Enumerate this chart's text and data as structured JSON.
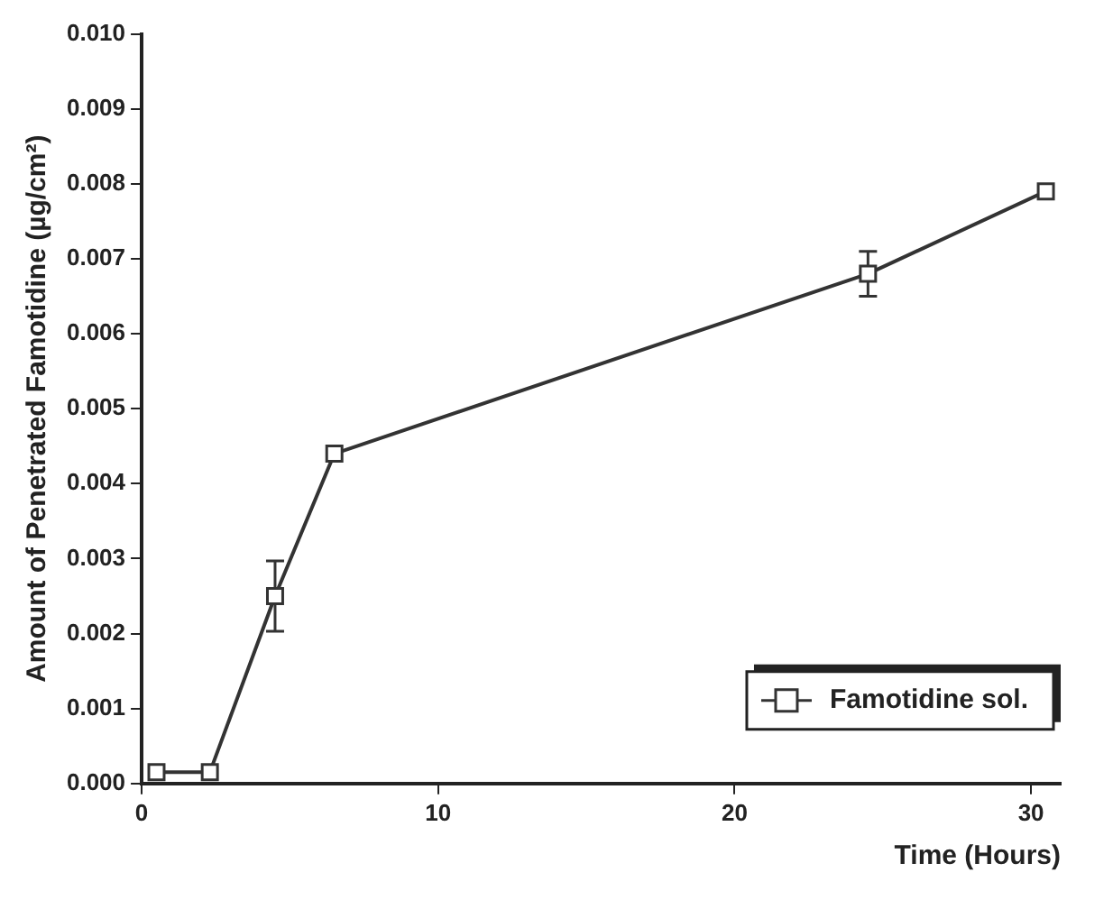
{
  "chart_data": {
    "type": "line",
    "xlabel": "Time (Hours)",
    "ylabel": "Amount of Penetrated Famotidine (µg/cm²)",
    "xlim": [
      0,
      31
    ],
    "xticks": [
      0,
      10,
      20,
      30
    ],
    "ylim": [
      0,
      0.01
    ],
    "yticks": [
      {
        "value": 0,
        "label": "0.000"
      },
      {
        "value": 0.001,
        "label": "0.001"
      },
      {
        "value": 0.002,
        "label": "0.002"
      },
      {
        "value": 0.003,
        "label": "0.003"
      },
      {
        "value": 0.004,
        "label": "0.004"
      },
      {
        "value": 0.005,
        "label": "0.005"
      },
      {
        "value": 0.006,
        "label": "0.006"
      },
      {
        "value": 0.007,
        "label": "0.007"
      },
      {
        "value": 0.008,
        "label": "0.008"
      },
      {
        "value": 0.009,
        "label": "0.009"
      },
      {
        "value": 0.01,
        "label": "0.010"
      }
    ],
    "series": [
      {
        "name": "Famotidine sol.",
        "color": "#333333",
        "x": [
          0.5,
          2.3,
          4.5,
          6.5,
          24.5,
          30.5
        ],
        "values": [
          0.00015,
          0.00015,
          0.0025,
          0.0044,
          0.0068,
          0.0079
        ],
        "errors": [
          null,
          null,
          0.00047,
          null,
          0.0003,
          null
        ]
      }
    ],
    "marker": "square",
    "line_style": "solid",
    "grid": false,
    "legend": "bottom right"
  }
}
